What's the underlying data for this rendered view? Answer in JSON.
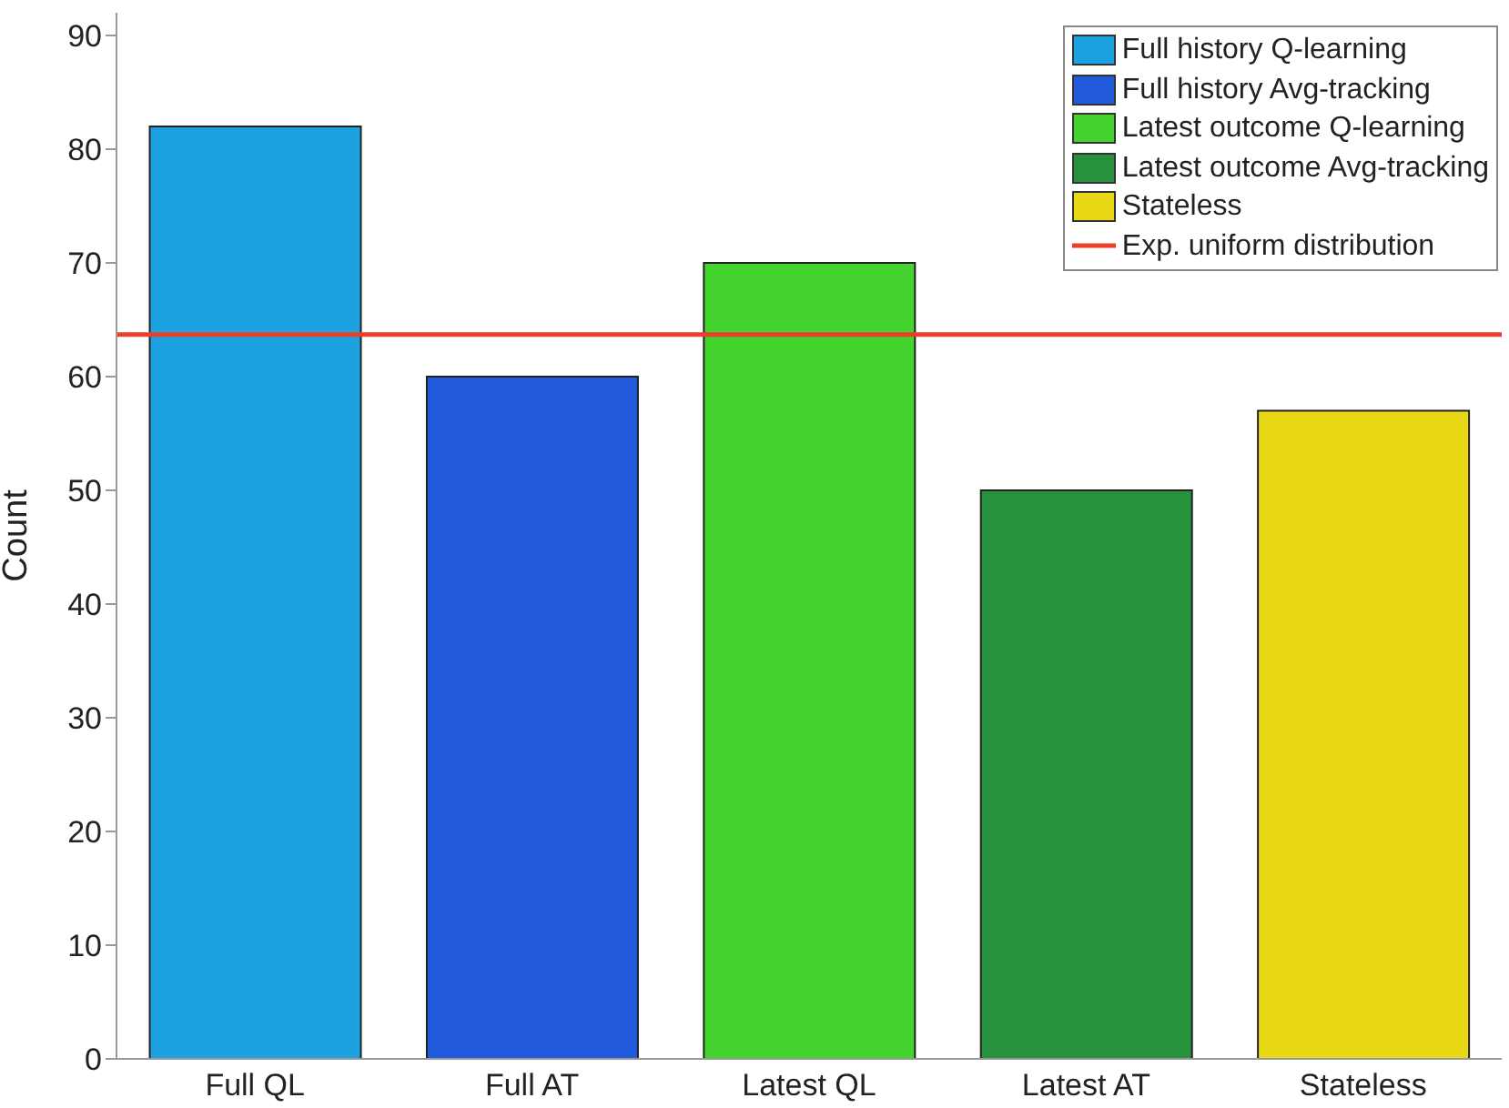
{
  "chart_data": {
    "type": "bar",
    "ylabel": "Count",
    "categories": [
      "Full QL",
      "Full AT",
      "Latest QL",
      "Latest AT",
      "Stateless"
    ],
    "series": [
      {
        "name": "Full history Q-learning",
        "color": "#1ea1e1",
        "values": [
          82,
          null,
          null,
          null,
          null
        ]
      },
      {
        "name": "Full history Avg-tracking",
        "color": "#215bdb",
        "values": [
          null,
          60,
          null,
          null,
          null
        ]
      },
      {
        "name": "Latest outcome Q-learning",
        "color": "#45d32f",
        "values": [
          null,
          null,
          70,
          null,
          null
        ]
      },
      {
        "name": "Latest outcome Avg-tracking",
        "color": "#26923d",
        "values": [
          null,
          null,
          null,
          50,
          null
        ]
      },
      {
        "name": "Stateless",
        "color": "#e9d816",
        "values": [
          null,
          null,
          null,
          null,
          57
        ]
      }
    ],
    "ref_lines": [
      {
        "axis": "y",
        "value": 63.7,
        "label": "Exp. uniform distribution",
        "color": "#e8402a"
      }
    ],
    "ylim": [
      0,
      92
    ],
    "yticks": [
      0,
      10,
      20,
      30,
      40,
      50,
      60,
      70,
      80,
      90
    ],
    "legend": "top right"
  }
}
